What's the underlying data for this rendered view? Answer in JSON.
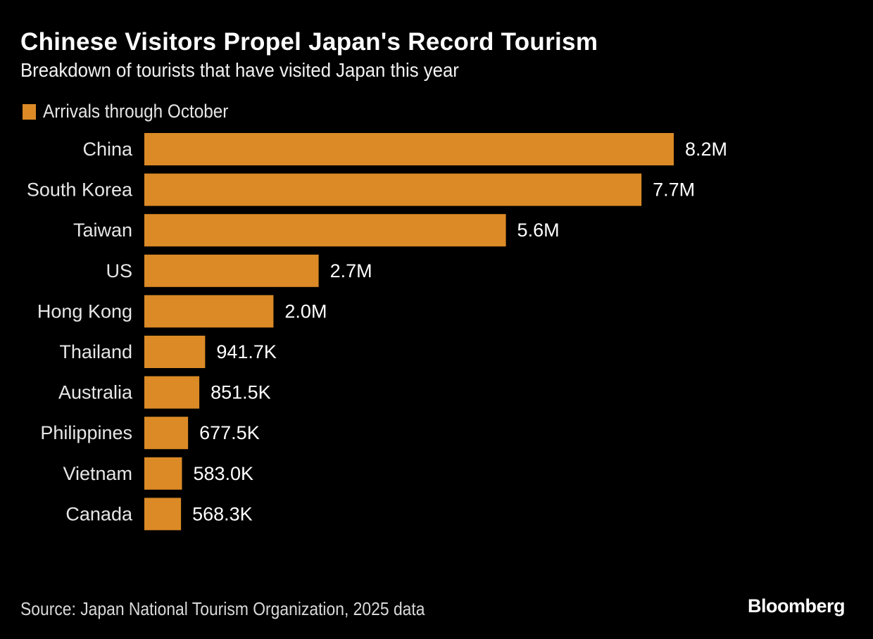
{
  "colors": {
    "bar": "#DB8A26",
    "background": "#000000"
  },
  "chart_data": {
    "type": "bar",
    "orientation": "horizontal",
    "title": "Chinese Visitors Propel Japan's Record Tourism",
    "subtitle": "Breakdown of tourists that have visited Japan this year",
    "xlabel": "",
    "ylabel": "",
    "legend": {
      "position": "top-left",
      "entries": [
        "Arrivals through October"
      ]
    },
    "grid": false,
    "categories": [
      "China",
      "South Korea",
      "Taiwan",
      "US",
      "Hong Kong",
      "Thailand",
      "Australia",
      "Philippines",
      "Vietnam",
      "Canada"
    ],
    "series": [
      {
        "name": "Arrivals through October",
        "values": [
          8200000,
          7700000,
          5600000,
          2700000,
          2000000,
          941700,
          851500,
          677500,
          583000,
          568300
        ],
        "labels": [
          "8.2M",
          "7.7M",
          "5.6M",
          "2.7M",
          "2.0M",
          "941.7K",
          "851.5K",
          "677.5K",
          "583.0K",
          "568.3K"
        ]
      }
    ],
    "xlim": [
      0,
      8200000
    ],
    "source": "Source: Japan National Tourism Organization, 2025 data",
    "brand": "Bloomberg"
  }
}
